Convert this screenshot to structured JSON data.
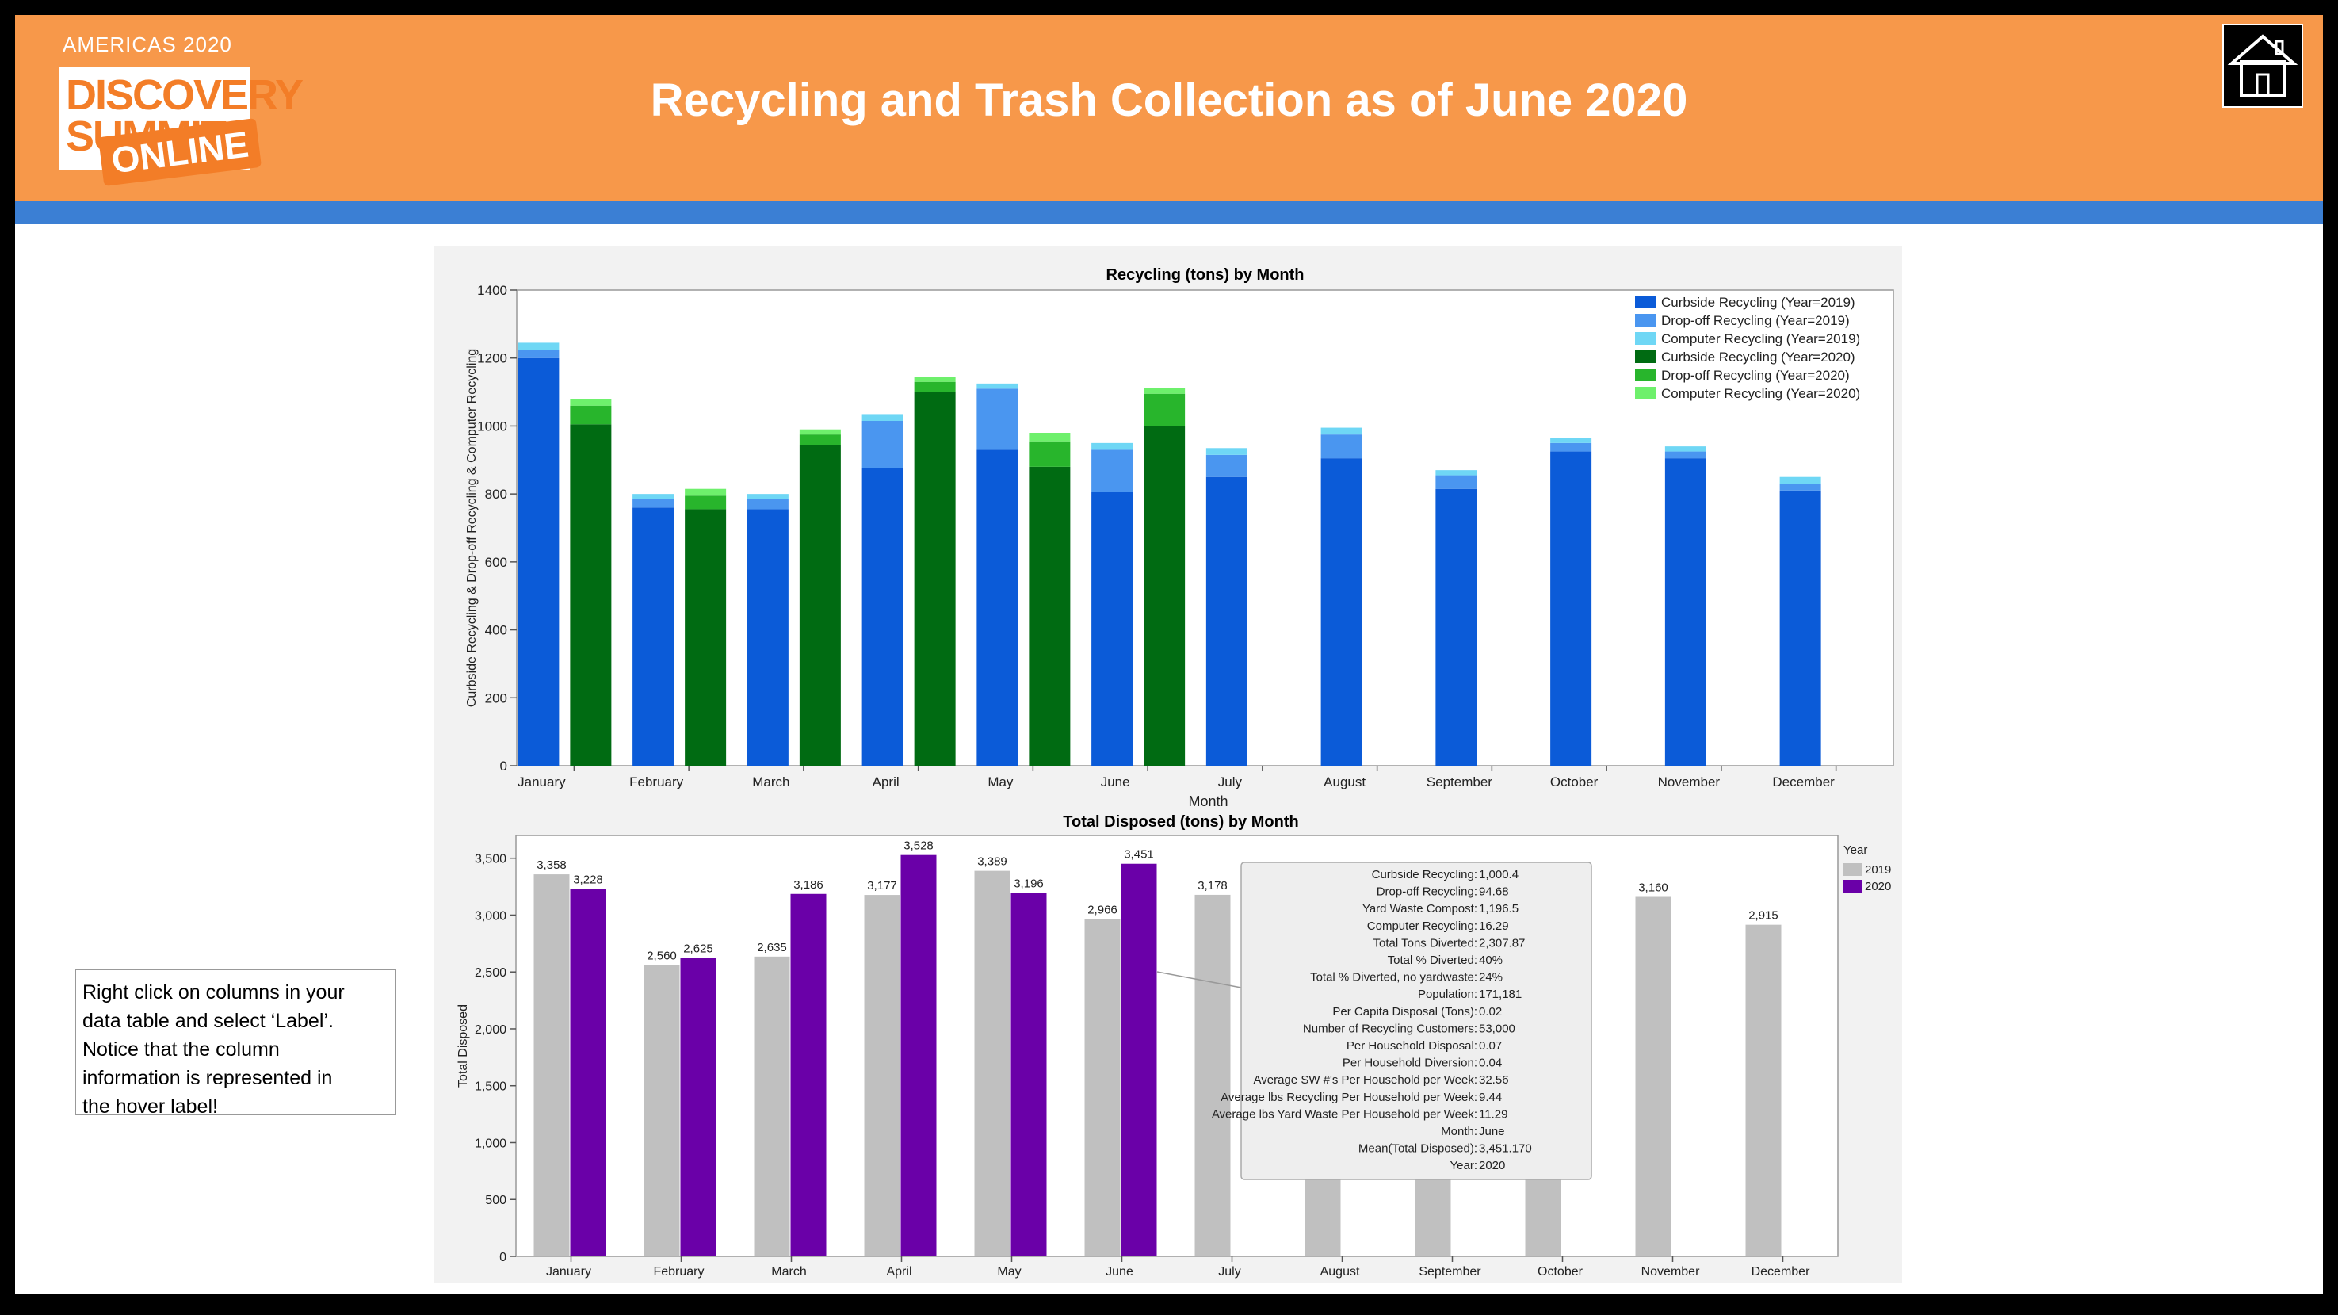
{
  "header": {
    "title": "Recycling and Trash Collection as of June 2020",
    "logo": {
      "top": "AMERICAS 2020",
      "line1": "DISCOVERY",
      "line2": "SUMMIT",
      "line3": "ONLINE"
    },
    "home_icon": "home-icon"
  },
  "note": {
    "lines": [
      "Right click on columns in your",
      "data table and select ‘Label’.",
      "Notice that the column",
      "information is represented in",
      "the hover label!"
    ]
  },
  "colors": {
    "header_bg": "#f7984a",
    "band": "#3b7fd4",
    "curbside_2019": "#0b5bd8",
    "dropoff_2019": "#4a96f0",
    "computer_2019": "#6fd7f5",
    "curbside_2020": "#006b12",
    "dropoff_2020": "#28b52c",
    "computer_2020": "#6ef06c",
    "disposed_2019": "#c0c0c0",
    "disposed_2020": "#6a00a8"
  },
  "chart_data": [
    {
      "type": "bar",
      "stacked": true,
      "title": "Recycling (tons) by Month",
      "xlabel": "Month",
      "ylabel": "Curbside Recycling & Drop-off Recycling & Computer Recycling",
      "ylim": [
        0,
        1400
      ],
      "yticks": [
        0,
        200,
        400,
        600,
        800,
        1000,
        1200,
        1400
      ],
      "legend_position": "top-right",
      "categories": [
        "January",
        "February",
        "March",
        "April",
        "May",
        "June",
        "July",
        "August",
        "September",
        "October",
        "November",
        "December"
      ],
      "groups": [
        {
          "year": "2019",
          "series": [
            {
              "name": "Curbside Recycling (Year=2019)",
              "values": [
                1200,
                760,
                755,
                875,
                930,
                805,
                850,
                905,
                815,
                925,
                905,
                810
              ]
            },
            {
              "name": "Drop-off Recycling (Year=2019)",
              "values": [
                25,
                25,
                30,
                140,
                180,
                125,
                65,
                70,
                40,
                25,
                20,
                20
              ]
            },
            {
              "name": "Computer Recycling (Year=2019)",
              "values": [
                20,
                15,
                15,
                20,
                15,
                20,
                20,
                20,
                15,
                15,
                15,
                20
              ]
            }
          ]
        },
        {
          "year": "2020",
          "series": [
            {
              "name": "Curbside Recycling (Year=2020)",
              "values": [
                1005,
                755,
                945,
                1100,
                880,
                1000,
                null,
                null,
                null,
                null,
                null,
                null
              ]
            },
            {
              "name": "Drop-off Recycling (Year=2020)",
              "values": [
                55,
                40,
                30,
                30,
                75,
                95,
                null,
                null,
                null,
                null,
                null,
                null
              ]
            },
            {
              "name": "Computer Recycling (Year=2020)",
              "values": [
                20,
                20,
                15,
                15,
                25,
                16,
                null,
                null,
                null,
                null,
                null,
                null
              ]
            }
          ]
        }
      ]
    },
    {
      "type": "bar",
      "title": "Total Disposed (tons) by Month",
      "xlabel": "Month",
      "ylabel": "Total Disposed",
      "ylim": [
        0,
        3700
      ],
      "yticks": [
        0,
        500,
        1000,
        1500,
        2000,
        2500,
        3000,
        3500
      ],
      "ytick_labels": [
        "0",
        "500",
        "1,000",
        "1,500",
        "2,000",
        "2,500",
        "3,000",
        "3,500"
      ],
      "legend_title": "Year",
      "legend_position": "right",
      "categories": [
        "January",
        "February",
        "March",
        "April",
        "May",
        "June",
        "July",
        "August",
        "September",
        "October",
        "November",
        "December"
      ],
      "series": [
        {
          "name": "2019",
          "values": [
            3358,
            2560,
            2635,
            3177,
            3389,
            2966,
            3178,
            3050,
            3000,
            3050,
            3160,
            2915
          ],
          "labels": [
            "3,358",
            "2,560",
            "2,635",
            "3,177",
            "3,389",
            "2,966",
            "3,178",
            "",
            "",
            "",
            "3,160",
            "2,915"
          ]
        },
        {
          "name": "2020",
          "values": [
            3228,
            2625,
            3186,
            3528,
            3196,
            3451,
            null,
            null,
            null,
            null,
            null,
            null
          ],
          "labels": [
            "3,228",
            "2,625",
            "3,186",
            "3,528",
            "3,196",
            "3,451",
            "",
            "",
            "",
            "",
            "",
            ""
          ]
        }
      ],
      "tooltip": {
        "rows": [
          [
            "Curbside Recycling:",
            "1,000.4"
          ],
          [
            "Drop-off Recycling:",
            "94.68"
          ],
          [
            "Yard Waste Compost:",
            "1,196.5"
          ],
          [
            "Computer Recycling:",
            "16.29"
          ],
          [
            "Total Tons Diverted:",
            "2,307.87"
          ],
          [
            "Total %  Diverted:",
            "40%"
          ],
          [
            "Total % Diverted, no yardwaste:",
            "24%"
          ],
          [
            "Population:",
            "171,181"
          ],
          [
            "Per Capita Disposal (Tons):",
            "0.02"
          ],
          [
            "Number of  Recycling Customers:",
            "53,000"
          ],
          [
            "Per Household Disposal:",
            "0.07"
          ],
          [
            "Per Household Diversion:",
            "0.04"
          ],
          [
            "Average SW #'s Per Household per Week:",
            "32.56"
          ],
          [
            "Average lbs Recycling Per Household per Week:",
            "9.44"
          ],
          [
            "Average lbs Yard Waste Per Household per Week:",
            "11.29"
          ],
          [
            "Month:",
            "June"
          ],
          [
            "Mean(Total Disposed):",
            "3,451.170"
          ],
          [
            "Year:",
            "2020"
          ]
        ]
      }
    }
  ]
}
